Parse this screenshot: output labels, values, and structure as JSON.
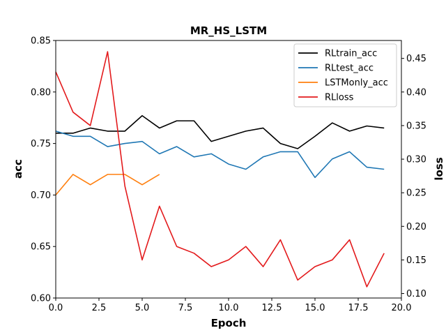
{
  "chart_data": {
    "type": "line",
    "title": "MR_HS_LSTM",
    "xlabel": "Epoch",
    "ylabel_left": "acc",
    "ylabel_right": "loss",
    "xlim": [
      0,
      20
    ],
    "ylim_left": [
      0.6,
      0.85
    ],
    "ylim_right": [
      0.0933,
      0.4767
    ],
    "x_ticks": [
      "0.0",
      "2.5",
      "5.0",
      "7.5",
      "10.0",
      "12.5",
      "15.0",
      "17.5",
      "20.0"
    ],
    "y_ticks_left": [
      "0.60",
      "0.65",
      "0.70",
      "0.75",
      "0.80",
      "0.85"
    ],
    "y_ticks_right": [
      "0.10",
      "0.15",
      "0.20",
      "0.25",
      "0.30",
      "0.35",
      "0.40",
      "0.45"
    ],
    "grid": false,
    "legend_position": "top-right",
    "series": [
      {
        "name": "RLtrain_acc",
        "axis": "left",
        "color": "#000000",
        "x": [
          0,
          1,
          2,
          3,
          4,
          5,
          6,
          7,
          8,
          9,
          10,
          11,
          12,
          13,
          14,
          15,
          16,
          17,
          18,
          19
        ],
        "values": [
          0.76,
          0.76,
          0.765,
          0.762,
          0.762,
          0.777,
          0.765,
          0.772,
          0.772,
          0.752,
          0.757,
          0.762,
          0.765,
          0.75,
          0.745,
          0.757,
          0.77,
          0.762,
          0.767,
          0.765
        ]
      },
      {
        "name": "RLtest_acc",
        "axis": "left",
        "color": "#1f77b4",
        "x": [
          0,
          1,
          2,
          3,
          4,
          5,
          6,
          7,
          8,
          9,
          10,
          11,
          12,
          13,
          14,
          15,
          16,
          17,
          18,
          19
        ],
        "values": [
          0.762,
          0.757,
          0.757,
          0.747,
          0.75,
          0.752,
          0.74,
          0.747,
          0.737,
          0.74,
          0.73,
          0.725,
          0.737,
          0.742,
          0.742,
          0.717,
          0.735,
          0.742,
          0.727,
          0.725
        ]
      },
      {
        "name": "LSTMonly_acc",
        "axis": "left",
        "color": "#ff7f0e",
        "x": [
          0,
          1,
          2,
          3,
          4,
          5,
          6
        ],
        "values": [
          0.7,
          0.72,
          0.71,
          0.72,
          0.72,
          0.71,
          0.72
        ]
      },
      {
        "name": "RLloss",
        "axis": "right",
        "color": "#e31a1c",
        "x": [
          0,
          1,
          2,
          3,
          4,
          5,
          6,
          7,
          8,
          9,
          10,
          11,
          12,
          13,
          14,
          15,
          16,
          17,
          18,
          19
        ],
        "values": [
          0.43,
          0.37,
          0.35,
          0.46,
          0.26,
          0.15,
          0.23,
          0.17,
          0.16,
          0.14,
          0.15,
          0.17,
          0.14,
          0.18,
          0.12,
          0.14,
          0.15,
          0.18,
          0.11,
          0.16
        ]
      }
    ]
  }
}
